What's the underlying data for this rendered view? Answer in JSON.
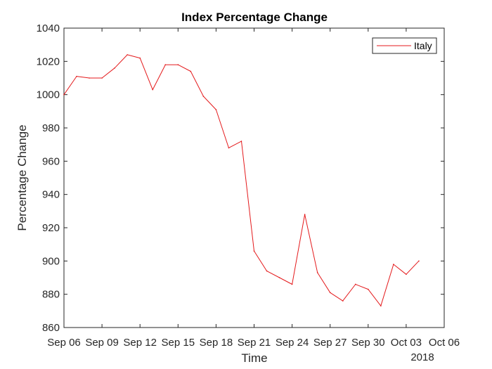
{
  "chart_data": {
    "type": "line",
    "title": "Index Percentage Change",
    "xlabel": "Time",
    "ylabel": "Percentage Change",
    "x_secondary_label": "2018",
    "ylim": [
      860,
      1040
    ],
    "xlim": [
      "Sep 06",
      "Oct 06"
    ],
    "yticks": [
      860,
      880,
      900,
      920,
      940,
      960,
      980,
      1000,
      1020,
      1040
    ],
    "xticks": [
      "Sep 06",
      "Sep 09",
      "Sep 12",
      "Sep 15",
      "Sep 18",
      "Sep 21",
      "Sep 24",
      "Sep 27",
      "Sep 30",
      "Oct 03",
      "Oct 06"
    ],
    "grid": false,
    "legend_position": "top-right",
    "line_color": "#e41a1c",
    "series": [
      {
        "name": "Italy",
        "x": [
          "Sep 06",
          "Sep 07",
          "Sep 08",
          "Sep 09",
          "Sep 10",
          "Sep 11",
          "Sep 12",
          "Sep 13",
          "Sep 14",
          "Sep 15",
          "Sep 16",
          "Sep 17",
          "Sep 18",
          "Sep 19",
          "Sep 20",
          "Sep 21",
          "Sep 22",
          "Sep 23",
          "Sep 24",
          "Sep 25",
          "Sep 26",
          "Sep 27",
          "Sep 28",
          "Sep 29",
          "Sep 30",
          "Oct 01",
          "Oct 02",
          "Oct 03",
          "Oct 04"
        ],
        "values": [
          1000,
          1011,
          1010,
          1010,
          1016,
          1024,
          1022,
          1003,
          1018,
          1018,
          1014,
          999,
          991,
          968,
          972,
          906,
          894,
          890,
          886,
          928,
          893,
          881,
          876,
          886,
          883,
          873,
          898,
          892,
          900
        ]
      }
    ]
  }
}
